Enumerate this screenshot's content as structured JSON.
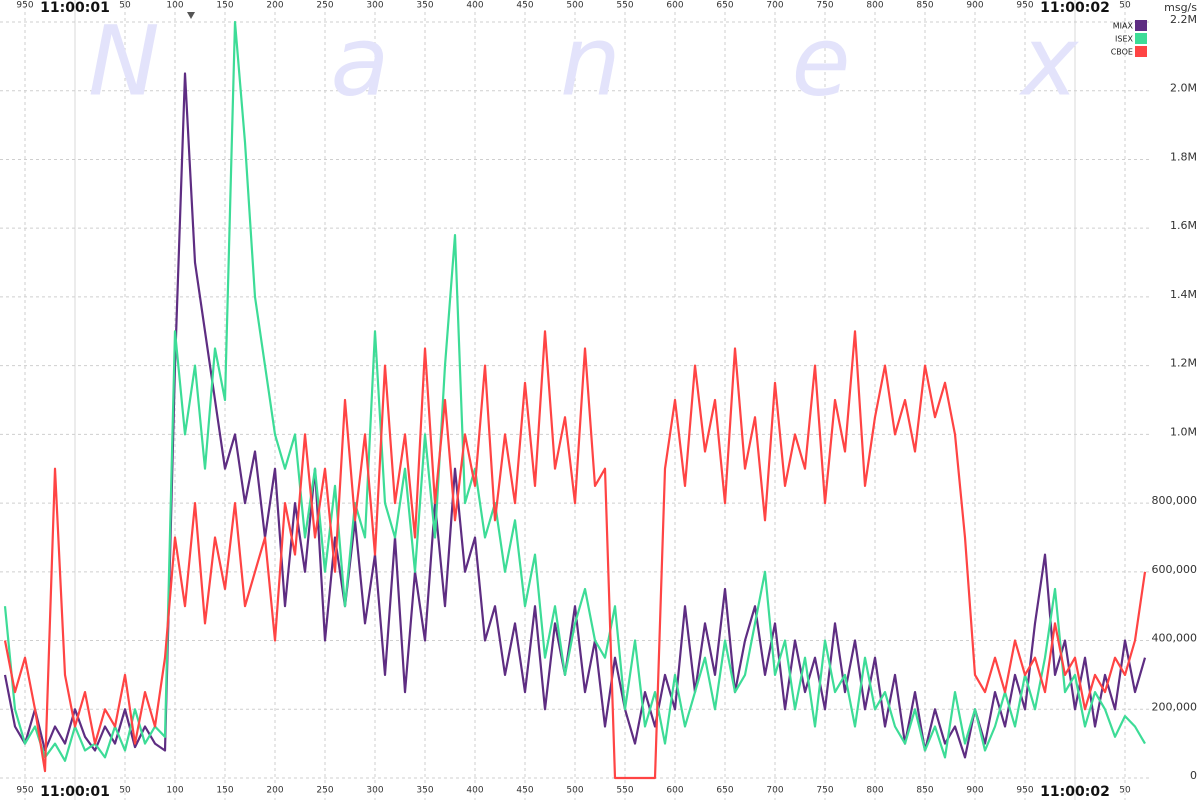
{
  "chart_data": {
    "type": "line",
    "watermark": "N a n e x",
    "y_axis_label": "msg/s",
    "legend": "upper right",
    "grid": true,
    "xlim": [
      925,
      2075
    ],
    "xticks": [
      {
        "value": 950,
        "label": "950"
      },
      {
        "value": 1000,
        "label": "11:00:01"
      },
      {
        "value": 1050,
        "label": "50"
      },
      {
        "value": 1100,
        "label": "100"
      },
      {
        "value": 1150,
        "label": "150"
      },
      {
        "value": 1200,
        "label": "200"
      },
      {
        "value": 1250,
        "label": "250"
      },
      {
        "value": 1300,
        "label": "300"
      },
      {
        "value": 1350,
        "label": "350"
      },
      {
        "value": 1400,
        "label": "400"
      },
      {
        "value": 1450,
        "label": "450"
      },
      {
        "value": 1500,
        "label": "500"
      },
      {
        "value": 1550,
        "label": "550"
      },
      {
        "value": 1600,
        "label": "600"
      },
      {
        "value": 1650,
        "label": "650"
      },
      {
        "value": 1700,
        "label": "700"
      },
      {
        "value": 1750,
        "label": "750"
      },
      {
        "value": 1800,
        "label": "800"
      },
      {
        "value": 1850,
        "label": "850"
      },
      {
        "value": 1900,
        "label": "900"
      },
      {
        "value": 1950,
        "label": "950"
      },
      {
        "value": 2000,
        "label": "11:00:02"
      },
      {
        "value": 2050,
        "label": "50"
      }
    ],
    "ylim": [
      0,
      2200000
    ],
    "yticks": [
      0,
      {
        "value": 200000,
        "label": "200,000"
      },
      {
        "value": 400000,
        "label": "400,000"
      },
      {
        "value": 600000,
        "label": "600,000"
      },
      {
        "value": 800000,
        "label": "800,000"
      },
      {
        "value": 1000000,
        "label": "1.0M"
      },
      {
        "value": 1200000,
        "label": "1.2M"
      },
      {
        "value": 1400000,
        "label": "1.4M"
      },
      {
        "value": 1600000,
        "label": "1.6M"
      },
      {
        "value": 1800000,
        "label": "1.8M"
      },
      {
        "value": 2000000,
        "label": "2.0M"
      },
      {
        "value": 2200000,
        "label": "2.2M"
      }
    ],
    "x": [
      930,
      940,
      950,
      960,
      970,
      980,
      990,
      1000,
      1010,
      1020,
      1030,
      1040,
      1050,
      1060,
      1070,
      1080,
      1090,
      1100,
      1110,
      1120,
      1130,
      1140,
      1150,
      1160,
      1170,
      1180,
      1190,
      1200,
      1210,
      1220,
      1230,
      1240,
      1250,
      1260,
      1270,
      1280,
      1290,
      1300,
      1310,
      1320,
      1330,
      1340,
      1350,
      1360,
      1370,
      1380,
      1390,
      1400,
      1410,
      1420,
      1430,
      1440,
      1450,
      1460,
      1470,
      1480,
      1490,
      1500,
      1510,
      1520,
      1530,
      1540,
      1550,
      1560,
      1570,
      1580,
      1590,
      1600,
      1610,
      1620,
      1630,
      1640,
      1650,
      1660,
      1670,
      1680,
      1690,
      1700,
      1710,
      1720,
      1730,
      1740,
      1750,
      1760,
      1770,
      1780,
      1790,
      1800,
      1810,
      1820,
      1830,
      1840,
      1850,
      1860,
      1870,
      1880,
      1890,
      1900,
      1910,
      1920,
      1930,
      1940,
      1950,
      1960,
      1970,
      1980,
      1990,
      2000,
      2010,
      2020,
      2030,
      2040,
      2050,
      2060,
      2070
    ],
    "series": [
      {
        "name": "MIAX",
        "color": "#5e2d82",
        "values": [
          300000,
          150000,
          100000,
          200000,
          80000,
          150000,
          100000,
          200000,
          120000,
          80000,
          150000,
          100000,
          200000,
          90000,
          150000,
          100000,
          80000,
          1200000,
          2050000,
          1500000,
          1300000,
          1100000,
          900000,
          1000000,
          800000,
          950000,
          700000,
          900000,
          500000,
          800000,
          600000,
          900000,
          400000,
          700000,
          500000,
          750000,
          450000,
          650000,
          300000,
          700000,
          250000,
          600000,
          400000,
          800000,
          500000,
          900000,
          600000,
          700000,
          400000,
          500000,
          300000,
          450000,
          250000,
          500000,
          200000,
          450000,
          300000,
          500000,
          250000,
          400000,
          150000,
          350000,
          200000,
          100000,
          250000,
          150000,
          300000,
          200000,
          500000,
          250000,
          450000,
          300000,
          550000,
          250000,
          400000,
          500000,
          300000,
          450000,
          200000,
          400000,
          250000,
          350000,
          200000,
          450000,
          250000,
          400000,
          200000,
          350000,
          150000,
          300000,
          100000,
          250000,
          80000,
          200000,
          100000,
          150000,
          60000,
          200000,
          100000,
          250000,
          150000,
          300000,
          200000,
          450000,
          650000,
          300000,
          400000,
          200000,
          350000,
          150000,
          300000,
          200000,
          400000,
          250000,
          350000
        ]
      },
      {
        "name": "ISEX",
        "color": "#3ddc97",
        "values": [
          500000,
          200000,
          100000,
          150000,
          60000,
          100000,
          50000,
          150000,
          80000,
          100000,
          60000,
          150000,
          80000,
          200000,
          100000,
          150000,
          120000,
          1300000,
          1000000,
          1200000,
          900000,
          1250000,
          1100000,
          2200000,
          1850000,
          1400000,
          1200000,
          1000000,
          900000,
          1000000,
          700000,
          900000,
          600000,
          850000,
          500000,
          800000,
          700000,
          1300000,
          800000,
          700000,
          900000,
          600000,
          1000000,
          700000,
          1200000,
          1580000,
          800000,
          900000,
          700000,
          800000,
          600000,
          750000,
          500000,
          650000,
          350000,
          500000,
          300000,
          450000,
          550000,
          400000,
          350000,
          500000,
          200000,
          400000,
          150000,
          250000,
          100000,
          300000,
          150000,
          250000,
          350000,
          200000,
          400000,
          250000,
          300000,
          450000,
          600000,
          300000,
          400000,
          200000,
          350000,
          150000,
          400000,
          250000,
          300000,
          150000,
          350000,
          200000,
          250000,
          150000,
          100000,
          200000,
          80000,
          150000,
          60000,
          250000,
          100000,
          200000,
          80000,
          150000,
          250000,
          150000,
          300000,
          200000,
          350000,
          550000,
          250000,
          300000,
          150000,
          250000,
          200000,
          120000,
          180000,
          150000,
          100000
        ]
      },
      {
        "name": "CBOE",
        "color": "#ff4444",
        "values": [
          400000,
          250000,
          350000,
          200000,
          20000,
          900000,
          300000,
          150000,
          250000,
          100000,
          200000,
          150000,
          300000,
          100000,
          250000,
          150000,
          350000,
          700000,
          500000,
          800000,
          450000,
          700000,
          550000,
          800000,
          500000,
          600000,
          700000,
          400000,
          800000,
          650000,
          1000000,
          700000,
          900000,
          600000,
          1100000,
          750000,
          1000000,
          650000,
          1200000,
          800000,
          1000000,
          700000,
          1250000,
          800000,
          1100000,
          750000,
          1000000,
          850000,
          1200000,
          750000,
          1000000,
          800000,
          1150000,
          850000,
          1300000,
          900000,
          1050000,
          800000,
          1250000,
          850000,
          900000,
          0,
          0,
          0,
          0,
          0,
          900000,
          1100000,
          850000,
          1200000,
          950000,
          1100000,
          800000,
          1250000,
          900000,
          1050000,
          750000,
          1150000,
          850000,
          1000000,
          900000,
          1200000,
          800000,
          1100000,
          950000,
          1300000,
          850000,
          1050000,
          1200000,
          1000000,
          1100000,
          950000,
          1200000,
          1050000,
          1150000,
          1000000,
          700000,
          300000,
          250000,
          350000,
          250000,
          400000,
          300000,
          350000,
          250000,
          450000,
          300000,
          350000,
          200000,
          300000,
          250000,
          350000,
          300000,
          400000,
          600000
        ]
      }
    ]
  }
}
